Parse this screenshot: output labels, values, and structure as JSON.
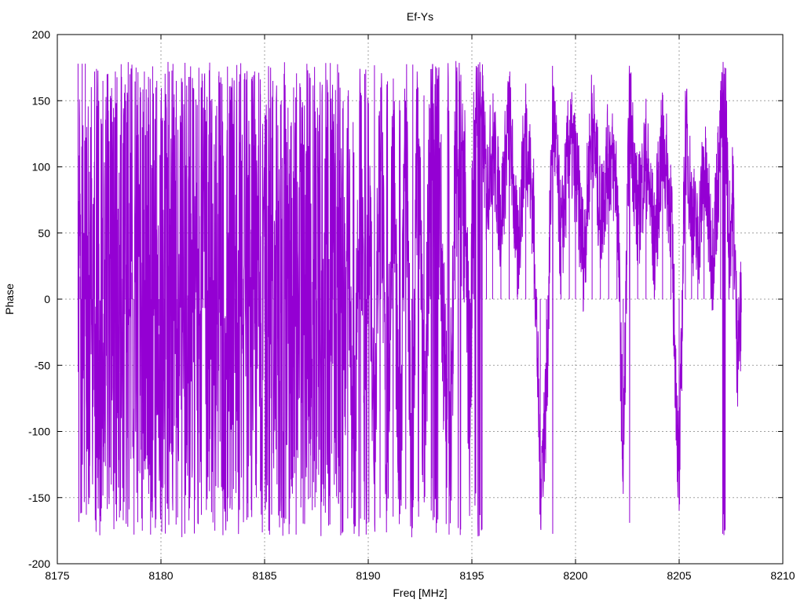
{
  "chart_data": {
    "type": "line",
    "title": "Ef-Ys",
    "xlabel": "Freq [MHz]",
    "ylabel": "Phase",
    "xlim": [
      8175,
      8210
    ],
    "ylim": [
      -200,
      200
    ],
    "xticks": [
      8175,
      8180,
      8185,
      8190,
      8195,
      8200,
      8205,
      8210
    ],
    "yticks": [
      -200,
      -150,
      -100,
      -50,
      0,
      50,
      100,
      150,
      200
    ],
    "grid": true,
    "legend": "none",
    "series": [
      {
        "color": "#9400d3",
        "x_range": [
          8176.0,
          8208.0
        ],
        "points": [
          [
            8176.0,
            178
          ],
          [
            8176.1,
            17
          ],
          [
            8176.15,
            -135
          ],
          [
            8176.2,
            178
          ],
          [
            8176.25,
            -60
          ],
          [
            8176.3,
            -110
          ],
          [
            8176.35,
            178
          ],
          [
            8176.4,
            -163
          ],
          [
            8176.45,
            45
          ],
          [
            8176.5,
            -90
          ],
          [
            8176.55,
            -150
          ],
          [
            8176.6,
            130
          ],
          [
            8176.7,
            -140
          ],
          [
            8176.8,
            172
          ],
          [
            8176.9,
            -120
          ],
          [
            8177.0,
            150
          ],
          [
            8177.1,
            -168
          ],
          [
            8177.2,
            165
          ],
          [
            8177.3,
            -10
          ],
          [
            8177.4,
            170
          ],
          [
            8177.5,
            -155
          ],
          [
            8177.6,
            140
          ],
          [
            8177.7,
            -145
          ],
          [
            8177.8,
            172
          ],
          [
            8177.9,
            60
          ],
          [
            8178.0,
            -165
          ],
          [
            8178.1,
            168
          ],
          [
            8178.2,
            -120
          ],
          [
            8178.3,
            150
          ],
          [
            8178.4,
            -172
          ],
          [
            8178.5,
            170
          ],
          [
            8178.6,
            20
          ],
          [
            8178.7,
            -178
          ],
          [
            8178.8,
            175
          ],
          [
            8178.9,
            -130
          ],
          [
            8179.0,
            160
          ],
          [
            8179.1,
            -175
          ],
          [
            8179.2,
            172
          ],
          [
            8179.3,
            -60
          ],
          [
            8179.4,
            168
          ],
          [
            8179.5,
            -178
          ],
          [
            8179.6,
            176
          ],
          [
            8179.7,
            -150
          ],
          [
            8179.8,
            165
          ],
          [
            8179.9,
            -20
          ],
          [
            8180.0,
            150
          ],
          [
            8180.2,
            -140
          ],
          [
            8180.4,
            172
          ],
          [
            8180.6,
            80
          ],
          [
            8180.8,
            -165
          ],
          [
            8181.0,
            160
          ],
          [
            8181.2,
            -120
          ],
          [
            8181.4,
            168
          ],
          [
            8181.6,
            40
          ],
          [
            8181.8,
            -170
          ],
          [
            8182.0,
            165
          ],
          [
            8182.2,
            -100
          ],
          [
            8182.4,
            150
          ],
          [
            8182.6,
            -175
          ],
          [
            8182.8,
            172
          ],
          [
            8183.0,
            60
          ],
          [
            8183.2,
            -168
          ],
          [
            8183.4,
            160
          ],
          [
            8183.6,
            -130
          ],
          [
            8183.8,
            170
          ],
          [
            8184.0,
            -20
          ],
          [
            8184.2,
            -165
          ],
          [
            8184.4,
            168
          ],
          [
            8184.6,
            -150
          ],
          [
            8184.8,
            155
          ],
          [
            8185.0,
            40
          ],
          [
            8185.2,
            -175
          ],
          [
            8185.4,
            165
          ],
          [
            8185.6,
            -140
          ],
          [
            8185.8,
            150
          ],
          [
            8186.0,
            90
          ],
          [
            8186.2,
            -170
          ],
          [
            8186.4,
            160
          ],
          [
            8186.6,
            -120
          ],
          [
            8186.8,
            145
          ],
          [
            8187.0,
            110
          ],
          [
            8187.2,
            -150
          ],
          [
            8187.4,
            150
          ],
          [
            8187.6,
            100
          ],
          [
            8187.8,
            -140
          ],
          [
            8188.0,
            130
          ],
          [
            8188.3,
            115
          ],
          [
            8188.6,
            105
          ],
          [
            8188.9,
            -20
          ],
          [
            8189.0,
            120
          ],
          [
            8189.3,
            -170
          ],
          [
            8189.6,
            150
          ],
          [
            8189.9,
            -178
          ],
          [
            8190.0,
            130
          ],
          [
            8190.3,
            -110
          ],
          [
            8190.6,
            160
          ],
          [
            8190.9,
            -160
          ],
          [
            8191.2,
            140
          ],
          [
            8191.5,
            -170
          ],
          [
            8191.8,
            150
          ],
          [
            8192.1,
            -180
          ],
          [
            8192.4,
            160
          ],
          [
            8192.7,
            -150
          ],
          [
            8193.0,
            140
          ],
          [
            8193.4,
            110
          ],
          [
            8193.9,
            -178
          ],
          [
            8194.2,
            120
          ],
          [
            8194.6,
            90
          ],
          [
            8194.9,
            -85
          ],
          [
            8195.1,
            130
          ],
          [
            8195.4,
            170
          ],
          [
            8195.7,
            80
          ],
          [
            8196.0,
            120
          ],
          [
            8196.4,
            60
          ],
          [
            8196.8,
            140
          ],
          [
            8197.2,
            30
          ],
          [
            8197.6,
            130
          ],
          [
            8198.0,
            60
          ],
          [
            8198.3,
            -138
          ],
          [
            8198.6,
            -75
          ],
          [
            8198.9,
            150
          ],
          [
            8199.3,
            40
          ],
          [
            8199.7,
            120
          ],
          [
            8200.0,
            100
          ],
          [
            8200.4,
            30
          ],
          [
            8200.8,
            140
          ],
          [
            8201.2,
            60
          ],
          [
            8201.6,
            110
          ],
          [
            8202.0,
            90
          ],
          [
            8202.3,
            -128
          ],
          [
            8202.6,
            150
          ],
          [
            8203.0,
            60
          ],
          [
            8203.4,
            110
          ],
          [
            8203.8,
            40
          ],
          [
            8204.2,
            120
          ],
          [
            8204.6,
            70
          ],
          [
            8205.0,
            -145
          ],
          [
            8205.3,
            130
          ],
          [
            8205.6,
            70
          ],
          [
            8205.9,
            40
          ],
          [
            8206.2,
            100
          ],
          [
            8206.6,
            30
          ],
          [
            8207.0,
            120
          ],
          [
            8207.2,
            175
          ],
          [
            8207.4,
            40
          ],
          [
            8207.6,
            80
          ],
          [
            8207.8,
            -40
          ],
          [
            8208.0,
            -10
          ]
        ]
      }
    ]
  }
}
